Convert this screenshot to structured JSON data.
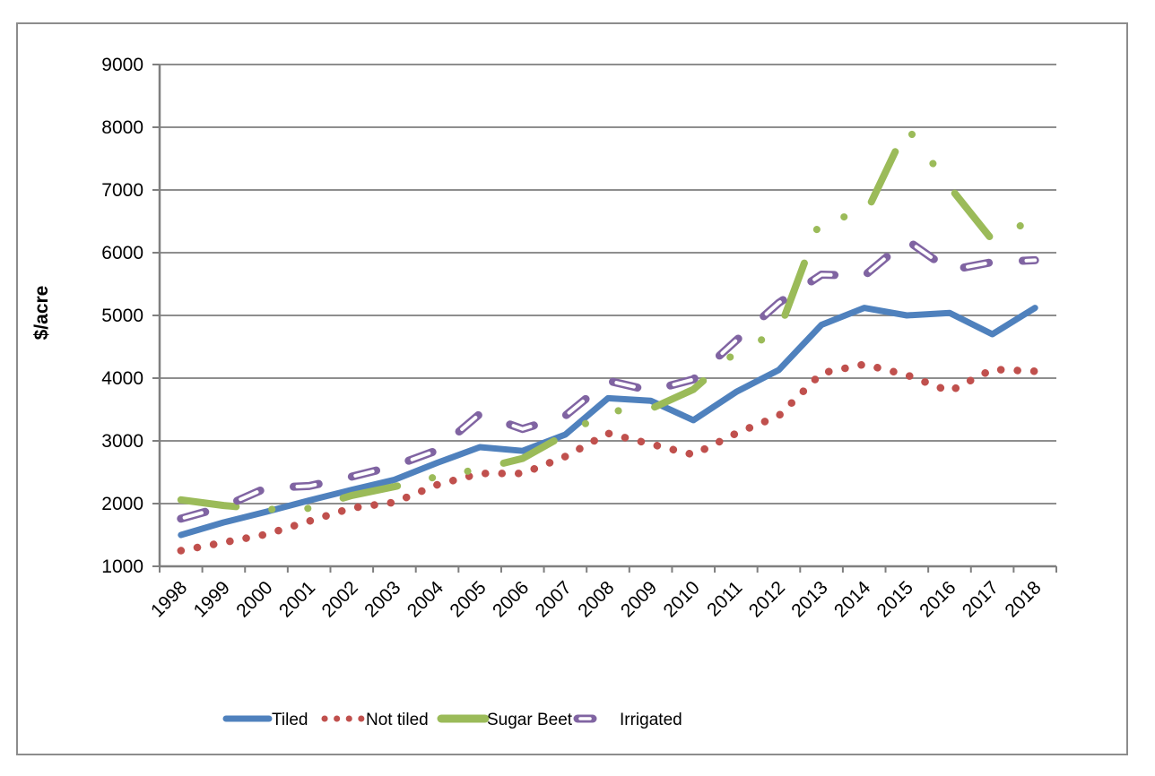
{
  "chart_data": {
    "type": "line",
    "title": "",
    "ylabel": "$/acre",
    "xlabel": "",
    "ylim": [
      1000,
      9000
    ],
    "ytick_step": 1000,
    "yticks": [
      "1000",
      "2000",
      "3000",
      "4000",
      "5000",
      "6000",
      "7000",
      "8000",
      "9000"
    ],
    "categories": [
      "1998",
      "1999",
      "2000",
      "2001",
      "2002",
      "2003",
      "2004",
      "2005",
      "2006",
      "2007",
      "2008",
      "2009",
      "2010",
      "2011",
      "2012",
      "2013",
      "2014",
      "2015",
      "2016",
      "2017",
      "2018"
    ],
    "grid": "horizontal-only",
    "legend_position": "bottom",
    "series": [
      {
        "name": "Tiled",
        "color": "#4F81BD",
        "line_style": "solid",
        "values": [
          1500,
          1700,
          1870,
          2050,
          2220,
          2380,
          2650,
          2900,
          2840,
          3100,
          3680,
          3640,
          3330,
          3780,
          4130,
          4850,
          5120,
          5000,
          5040,
          4700,
          5120
        ]
      },
      {
        "name": "Not tiled",
        "color": "#C0504D",
        "line_style": "round-dot",
        "values": [
          1250,
          1380,
          1510,
          1720,
          1930,
          2020,
          2300,
          2480,
          2480,
          2750,
          3120,
          2950,
          2780,
          3120,
          3400,
          4080,
          4220,
          4050,
          3790,
          4140,
          4110
        ]
      },
      {
        "name": "Sugar Beet",
        "color": "#9BBB59",
        "line_style": "long-dash-dot-dot",
        "values": [
          2060,
          1970,
          1905,
          1925,
          2130,
          2270,
          2430,
          2550,
          2720,
          3100,
          3470,
          3510,
          3820,
          4420,
          4740,
          6570,
          6570,
          8000,
          7050,
          6200,
          6550
        ]
      },
      {
        "name": "Irrigated",
        "color": "#8064A2",
        "line_style": "hollow-dash",
        "values": [
          1760,
          1950,
          2250,
          2280,
          2430,
          2600,
          2850,
          3430,
          3190,
          3400,
          3960,
          3800,
          3980,
          4600,
          5200,
          5650,
          5630,
          6200,
          5720,
          5850,
          5880
        ]
      }
    ]
  },
  "frame": {
    "border_color": "#8C8C8C",
    "background": "#FFFFFF"
  },
  "axes": {
    "grid_color": "#8E8E8E",
    "axis_color": "#7F7F7F",
    "tick_label_color": "#000000"
  }
}
